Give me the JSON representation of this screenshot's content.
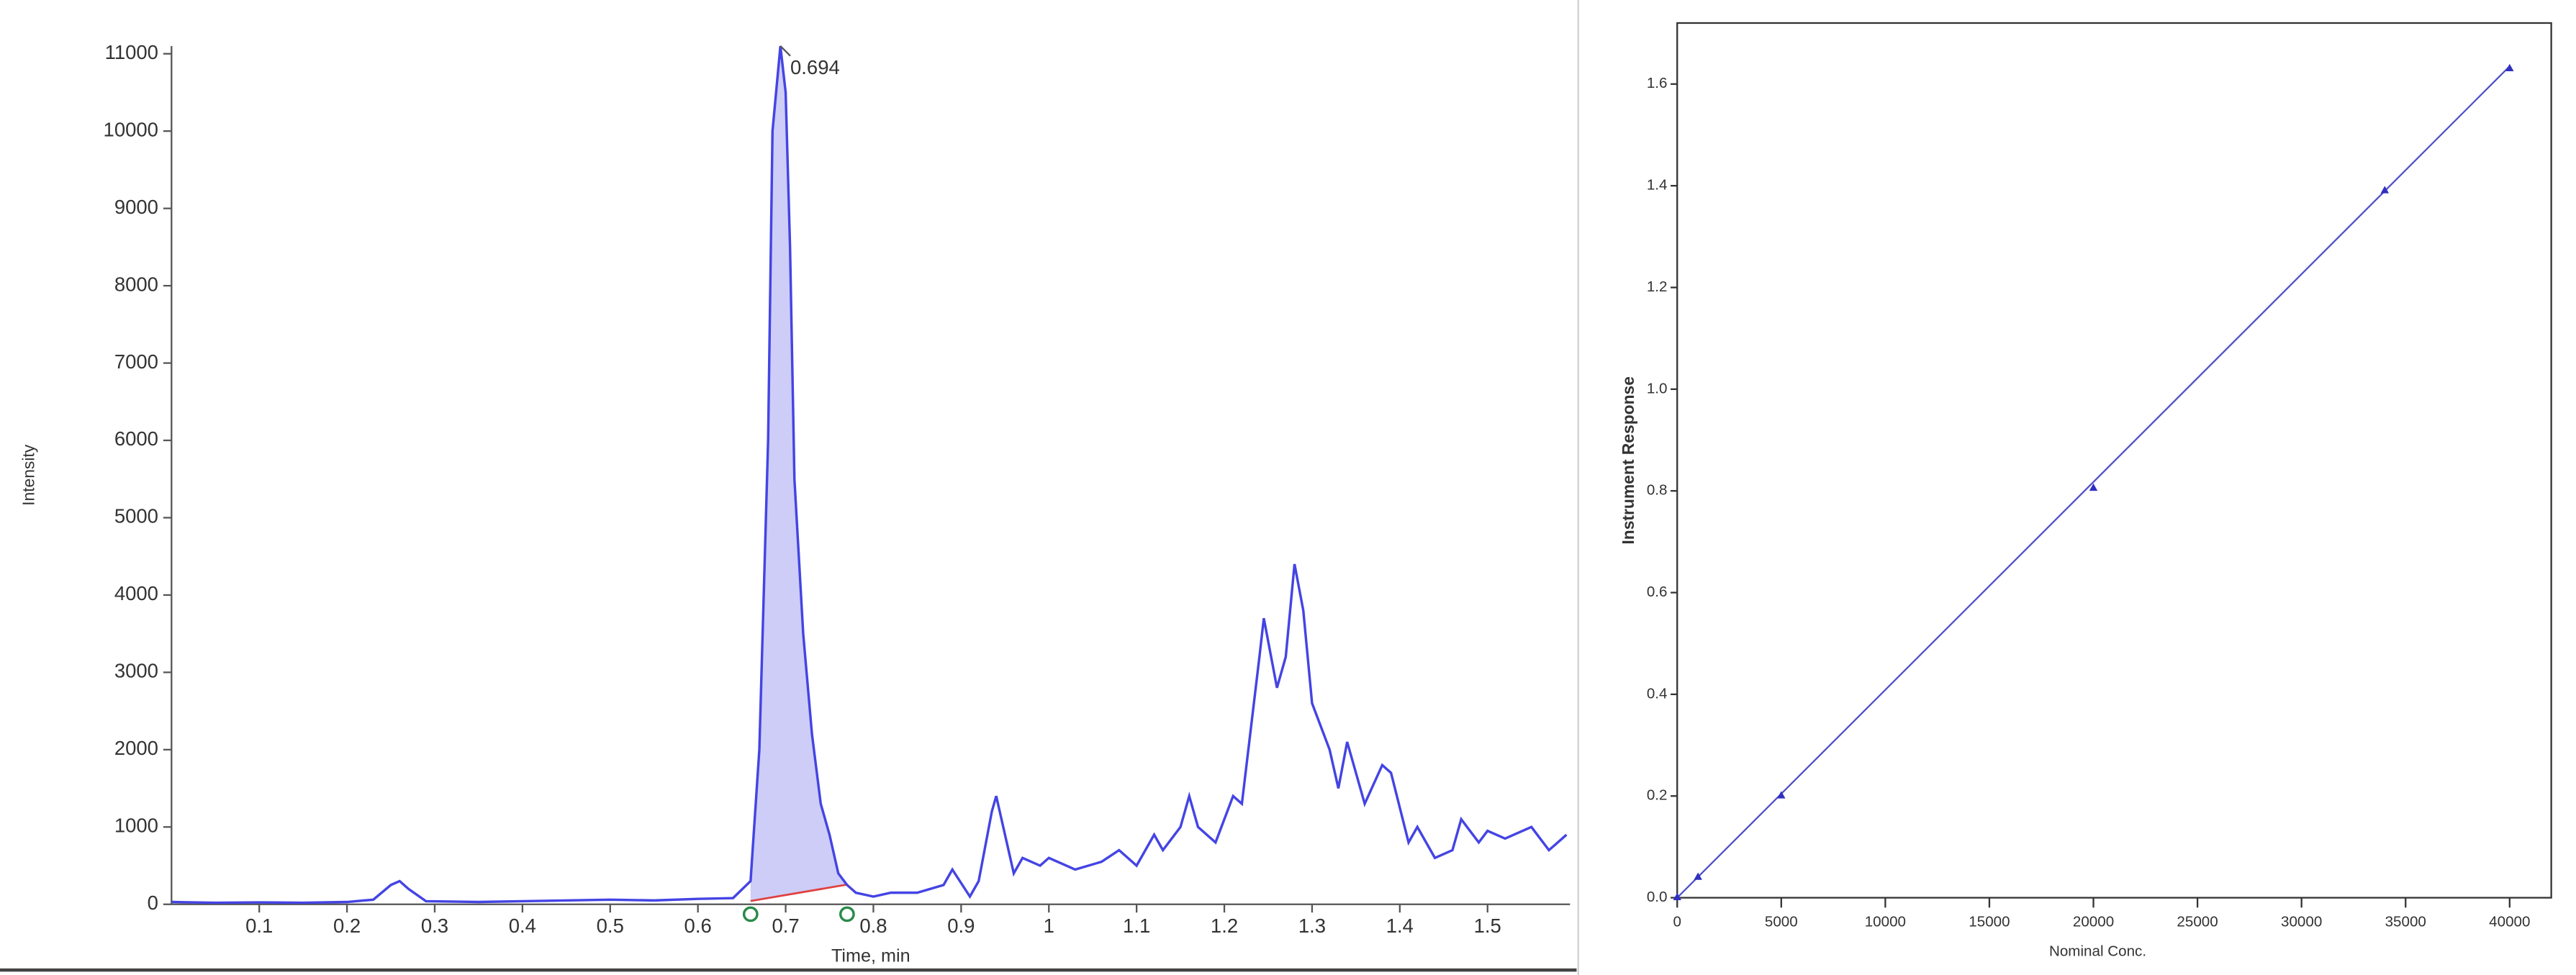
{
  "chart_data": [
    {
      "type": "line",
      "xlabel": "Time, min",
      "ylabel": "Intensity",
      "annotation": "0.694",
      "x": [
        0.0,
        0.05,
        0.1,
        0.15,
        0.2,
        0.23,
        0.25,
        0.26,
        0.27,
        0.29,
        0.35,
        0.4,
        0.5,
        0.55,
        0.6,
        0.64,
        0.66,
        0.67,
        0.68,
        0.685,
        0.694,
        0.7,
        0.705,
        0.71,
        0.72,
        0.73,
        0.74,
        0.75,
        0.76,
        0.77,
        0.78,
        0.8,
        0.82,
        0.85,
        0.88,
        0.89,
        0.91,
        0.92,
        0.935,
        0.94,
        0.95,
        0.96,
        0.97,
        0.99,
        1.0,
        1.03,
        1.06,
        1.08,
        1.1,
        1.12,
        1.13,
        1.15,
        1.16,
        1.17,
        1.19,
        1.21,
        1.22,
        1.24,
        1.245,
        1.26,
        1.27,
        1.28,
        1.29,
        1.3,
        1.32,
        1.33,
        1.34,
        1.36,
        1.38,
        1.39,
        1.41,
        1.42,
        1.44,
        1.46,
        1.47,
        1.49,
        1.5,
        1.52,
        1.55,
        1.57,
        1.59
      ],
      "series": [
        {
          "color": "#4444e4",
          "values": [
            30,
            20,
            25,
            20,
            30,
            60,
            250,
            300,
            200,
            40,
            30,
            40,
            60,
            50,
            70,
            80,
            300,
            2000,
            6000,
            10000,
            11100,
            10500,
            8500,
            5500,
            3500,
            2200,
            1300,
            900,
            400,
            250,
            150,
            100,
            150,
            150,
            250,
            450,
            100,
            300,
            1200,
            1400,
            900,
            400,
            600,
            500,
            600,
            450,
            550,
            700,
            500,
            900,
            700,
            1000,
            1400,
            1000,
            800,
            1400,
            1300,
            3200,
            3700,
            2800,
            3200,
            4400,
            3800,
            2600,
            2000,
            1500,
            2100,
            1300,
            1800,
            1700,
            800,
            1000,
            600,
            700,
            1100,
            800,
            950,
            850,
            1000,
            700,
            900
          ]
        }
      ],
      "integration": [
        0.66,
        0.77
      ],
      "xlim": [
        0,
        1.594
      ],
      "ylim": [
        0,
        11100
      ],
      "xticks": [
        0.1,
        0.2,
        0.3,
        0.4,
        0.5,
        0.6,
        0.7,
        0.8,
        0.9,
        1.0,
        1.1,
        1.2,
        1.3,
        1.4,
        1.5
      ],
      "yticks": [
        0,
        1000,
        2000,
        3000,
        4000,
        5000,
        6000,
        7000,
        8000,
        9000,
        10000,
        11000
      ]
    },
    {
      "type": "scatter",
      "xlabel": "Nominal Conc.",
      "ylabel": "Instrument Response",
      "points": {
        "color": "#3030c0",
        "x": [
          0,
          1000,
          5000,
          20000,
          34000,
          40000
        ],
        "values": [
          0.0,
          0.04,
          0.2,
          0.805,
          1.39,
          1.63
        ]
      },
      "fit_line": {
        "color": "#5050c8",
        "x": [
          0,
          40000
        ],
        "values": [
          0.0,
          1.635
        ]
      },
      "xlim": [
        0,
        42000
      ],
      "ylim": [
        0,
        1.72
      ],
      "xticks": [
        0,
        5000,
        10000,
        15000,
        20000,
        25000,
        30000,
        35000,
        40000
      ],
      "yticks": [
        {
          "value": 0,
          "label": "0.0"
        },
        {
          "value": 0.2,
          "label": "0.2"
        },
        {
          "value": 0.4,
          "label": "0.4"
        },
        {
          "value": 0.6,
          "label": "0.6"
        },
        {
          "value": 0.8,
          "label": "0.8"
        },
        {
          "value": 1.0,
          "label": "1.0"
        },
        {
          "value": 1.2,
          "label": "1.2"
        },
        {
          "value": 1.4,
          "label": "1.4"
        },
        {
          "value": 1.6,
          "label": "1.6"
        }
      ]
    }
  ]
}
